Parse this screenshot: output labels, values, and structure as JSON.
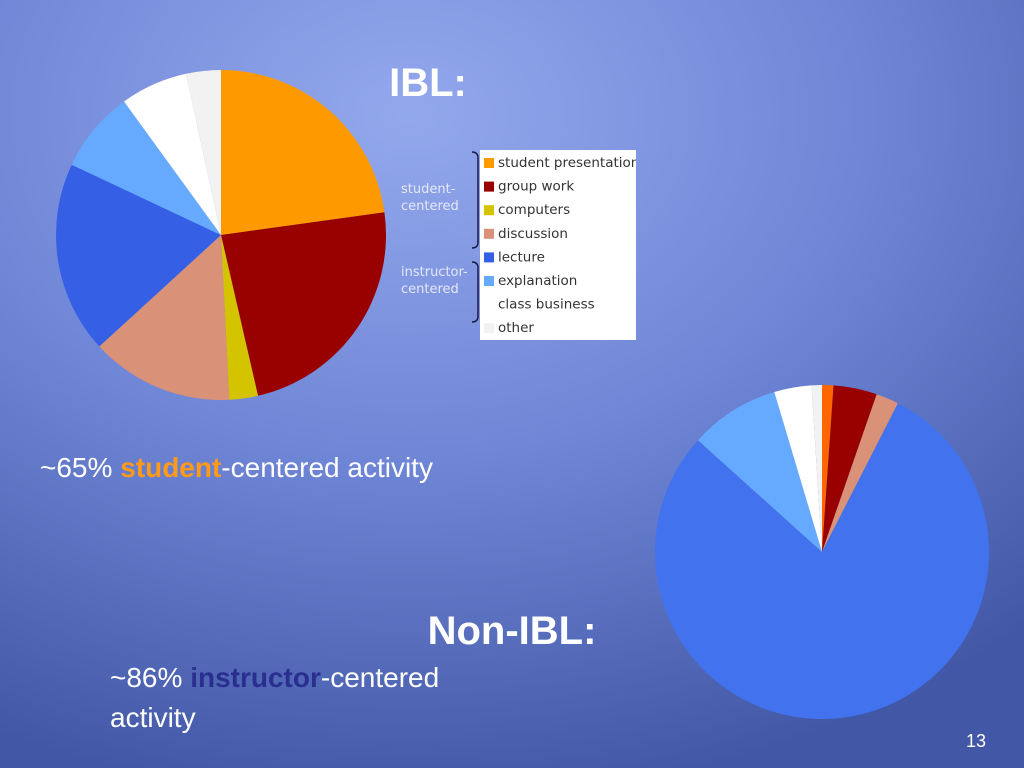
{
  "chart_data": [
    {
      "type": "pie",
      "title": "IBL:",
      "categories": [
        "student presentation",
        "group work",
        "computers",
        "discussion",
        "lecture",
        "explanation",
        "class business",
        "other"
      ],
      "values": [
        22.8,
        23.6,
        2.8,
        14,
        18.8,
        8,
        6.6,
        3.4
      ],
      "colors": [
        "#ff9900",
        "#990000",
        "#d4c400",
        "#d99178",
        "#3560e6",
        "#66aaff",
        "#ffffff",
        "#f2f2f2"
      ],
      "legend": "right",
      "group_labels": [
        [
          "student-",
          "centered"
        ],
        [
          "instructor-",
          "centered"
        ]
      ],
      "caption": [
        "~65%",
        "student",
        "-centered activity"
      ]
    },
    {
      "type": "pie",
      "title": "Non-IBL:",
      "categories": [
        null,
        null,
        null,
        null,
        null,
        null,
        null
      ],
      "values": [
        1.1,
        4.2,
        2.2,
        79,
        8.7,
        3.6,
        1
      ],
      "colors": [
        "#ff6600",
        "#990000",
        "#d99178",
        "#4272ee",
        "#66aaff",
        "#ffffff",
        "#f2f2f2"
      ],
      "caption": [
        "~86%",
        "instructor",
        "-centered",
        "activity"
      ]
    }
  ],
  "page_number": 13
}
